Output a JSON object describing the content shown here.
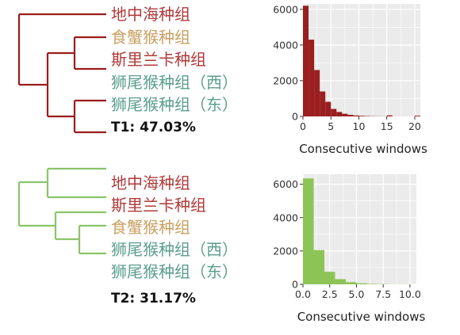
{
  "colors": {
    "red": "#b03a3a",
    "tan": "#c9a061",
    "teal": "#5a9e8c",
    "tree1": "#9b1c1c",
    "tree2": "#8cc46a",
    "hist1": "#9b1f1f",
    "hist2": "#8cc456",
    "panel_bg": "#ebebeb",
    "grid": "#ffffff"
  },
  "topologies": [
    {
      "taxa": [
        {
          "label": "地中海种组",
          "color": "red"
        },
        {
          "label": "食蟹猴种组",
          "color": "tan"
        },
        {
          "label": "斯里兰卡种组",
          "color": "red"
        },
        {
          "label": "狮尾猴种组（西）",
          "color": "teal"
        },
        {
          "label": "狮尾猴种组（东）",
          "color": "teal"
        }
      ],
      "percent_label": "T1: 47.03%"
    },
    {
      "taxa": [
        {
          "label": "地中海种组",
          "color": "red"
        },
        {
          "label": "斯里兰卡种组",
          "color": "red"
        },
        {
          "label": "食蟹猴种组",
          "color": "tan"
        },
        {
          "label": "狮尾猴种组（西）",
          "color": "teal"
        },
        {
          "label": "狮尾猴种组（东）",
          "color": "teal"
        }
      ],
      "percent_label": "T2: 31.17%"
    }
  ],
  "chart_data": [
    {
      "type": "bar",
      "xlabel": "Consecutive windows",
      "ylabel": "",
      "xlim": [
        0,
        21
      ],
      "ylim": [
        0,
        6300
      ],
      "x_ticks": [
        "0",
        "5",
        "10",
        "15",
        "20"
      ],
      "y_ticks": [
        "0",
        "2000",
        "4000",
        "6000"
      ],
      "bin_width": 1,
      "bins_start": [
        0,
        1,
        2,
        3,
        4,
        5,
        6,
        7,
        8,
        9,
        10,
        11,
        12,
        13,
        14,
        15,
        16,
        17,
        18,
        19,
        20
      ],
      "values": [
        6200,
        4300,
        2600,
        1400,
        820,
        420,
        250,
        150,
        90,
        55,
        35,
        22,
        15,
        10,
        8,
        60,
        5,
        4,
        3,
        2,
        40
      ]
    },
    {
      "type": "bar",
      "xlabel": "Consecutive windows",
      "ylabel": "",
      "xlim": [
        0,
        10.6
      ],
      "ylim": [
        0,
        6600
      ],
      "x_ticks": [
        "0.0",
        "2.5",
        "5.0",
        "7.5",
        "10.0"
      ],
      "y_ticks": [
        "0",
        "2000",
        "4000",
        "6000"
      ],
      "bin_width": 1,
      "bins_start": [
        0,
        1,
        2,
        3,
        4,
        5,
        6,
        7,
        8,
        9
      ],
      "values": [
        6350,
        2050,
        750,
        310,
        130,
        60,
        30,
        18,
        10,
        6
      ]
    }
  ]
}
